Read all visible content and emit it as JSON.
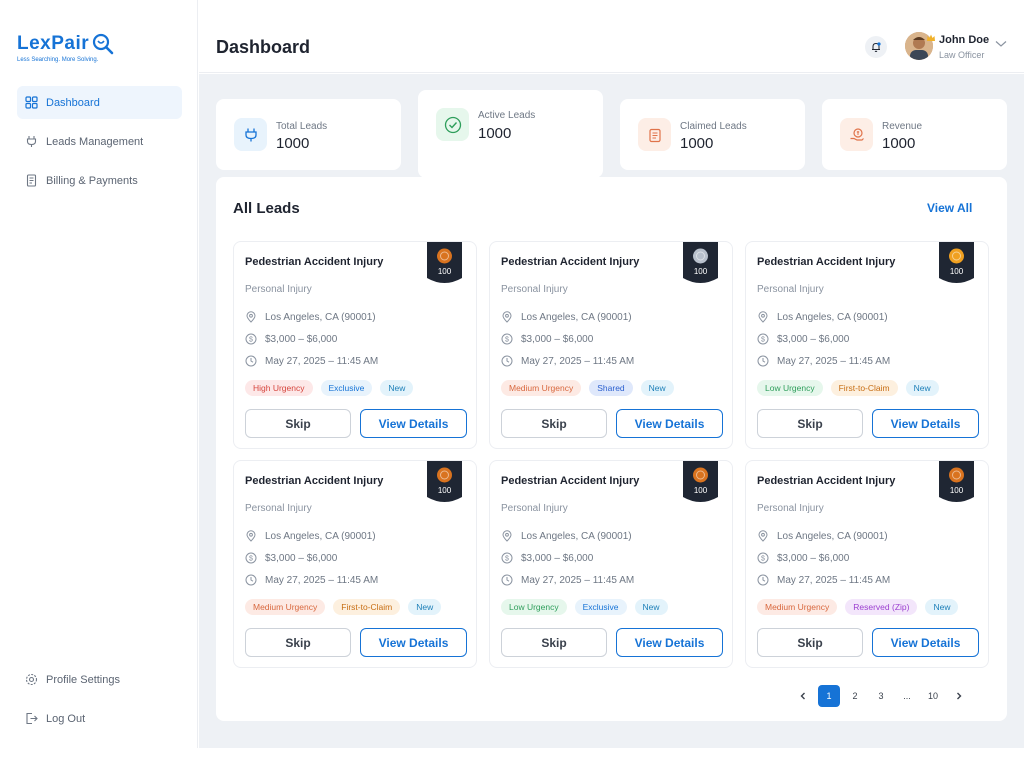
{
  "brand": {
    "name": "LexPair",
    "tagline": "Less Searching. More Solving."
  },
  "sidebar": {
    "items": [
      {
        "label": "Dashboard",
        "icon": "grid-icon",
        "active": true
      },
      {
        "label": "Leads Management",
        "icon": "plug-icon",
        "active": false
      },
      {
        "label": "Billing & Payments",
        "icon": "receipt-icon",
        "active": false
      }
    ],
    "bottom": [
      {
        "label": "Profile Settings",
        "icon": "gear-icon"
      },
      {
        "label": "Log Out",
        "icon": "logout-icon"
      }
    ]
  },
  "header": {
    "title": "Dashboard",
    "user": {
      "name": "John Doe",
      "role": "Law Officer"
    }
  },
  "stats": [
    {
      "label": "Total Leads",
      "value": "1000",
      "icon": "plug-icon",
      "color": "#1673d6"
    },
    {
      "label": "Active Leads",
      "value": "1000",
      "icon": "check-circle-icon",
      "color": "#2e9e5b"
    },
    {
      "label": "Claimed Leads",
      "value": "1000",
      "icon": "clipboard-icon",
      "color": "#e0734a"
    },
    {
      "label": "Revenue",
      "value": "1000",
      "icon": "money-hand-icon",
      "color": "#e0734a"
    }
  ],
  "leads": {
    "title": "All Leads",
    "view_all": "View All",
    "skip_label": "Skip",
    "view_label": "View Details",
    "cards": [
      {
        "title": "Pedestrian Accident Injury",
        "category": "Personal Injury",
        "location": "Los Angeles, CA (90001)",
        "amount": "$3,000 – $6,000",
        "date": "May 27, 2025 – 11:45 AM",
        "score": "100",
        "medal": "bronze",
        "tags": [
          {
            "label": "High Urgency",
            "kind": "high"
          },
          {
            "label": "Exclusive",
            "kind": "exclusive"
          },
          {
            "label": "New",
            "kind": "new"
          }
        ]
      },
      {
        "title": "Pedestrian Accident Injury",
        "category": "Personal Injury",
        "location": "Los Angeles, CA (90001)",
        "amount": "$3,000 – $6,000",
        "date": "May 27, 2025 – 11:45 AM",
        "score": "100",
        "medal": "silver",
        "tags": [
          {
            "label": "Medium Urgency",
            "kind": "medium"
          },
          {
            "label": "Shared",
            "kind": "shared"
          },
          {
            "label": "New",
            "kind": "new"
          }
        ]
      },
      {
        "title": "Pedestrian Accident Injury",
        "category": "Personal Injury",
        "location": "Los Angeles, CA (90001)",
        "amount": "$3,000 – $6,000",
        "date": "May 27, 2025 – 11:45 AM",
        "score": "100",
        "medal": "gold",
        "tags": [
          {
            "label": "Low Urgency",
            "kind": "low"
          },
          {
            "label": "First-to-Claim",
            "kind": "first"
          },
          {
            "label": "New",
            "kind": "new"
          }
        ]
      },
      {
        "title": "Pedestrian Accident Injury",
        "category": "Personal Injury",
        "location": "Los Angeles, CA (90001)",
        "amount": "$3,000 – $6,000",
        "date": "May 27, 2025 – 11:45 AM",
        "score": "100",
        "medal": "bronze",
        "tags": [
          {
            "label": "Medium Urgency",
            "kind": "medium"
          },
          {
            "label": "First-to-Claim",
            "kind": "first"
          },
          {
            "label": "New",
            "kind": "new"
          }
        ]
      },
      {
        "title": "Pedestrian Accident Injury",
        "category": "Personal Injury",
        "location": "Los Angeles, CA (90001)",
        "amount": "$3,000 – $6,000",
        "date": "May 27, 2025 – 11:45 AM",
        "score": "100",
        "medal": "bronze",
        "tags": [
          {
            "label": "Low Urgency",
            "kind": "low"
          },
          {
            "label": "Exclusive",
            "kind": "exclusive"
          },
          {
            "label": "New",
            "kind": "new"
          }
        ]
      },
      {
        "title": "Pedestrian Accident Injury",
        "category": "Personal Injury",
        "location": "Los Angeles, CA (90001)",
        "amount": "$3,000 – $6,000",
        "date": "May 27, 2025 – 11:45 AM",
        "score": "100",
        "medal": "bronze",
        "tags": [
          {
            "label": "Medium Urgency",
            "kind": "medium"
          },
          {
            "label": "Reserved (Zip)",
            "kind": "reserved"
          },
          {
            "label": "New",
            "kind": "new"
          }
        ]
      }
    ]
  },
  "pagination": {
    "pages": [
      "1",
      "2",
      "3",
      "...",
      "10"
    ],
    "current": "1"
  },
  "colors": {
    "accent": "#1673d6",
    "page_bg": "#eef1f5",
    "ribbon": "#1f2633",
    "gold": "#f0a020",
    "silver": "#b8c0cc",
    "bronze": "#d9731f"
  }
}
